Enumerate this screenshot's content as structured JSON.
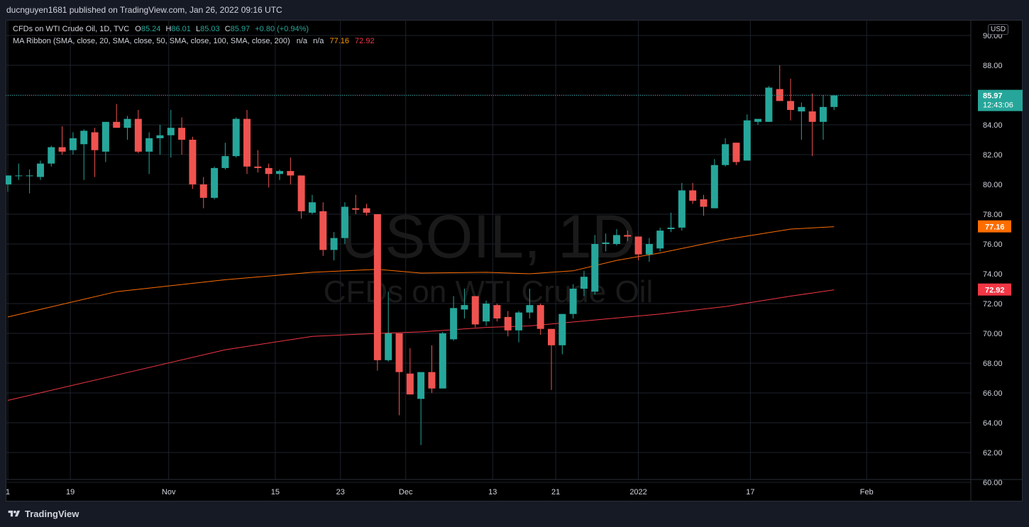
{
  "header": {
    "publisher_text": "ducnguyen1681 published on TradingView.com, Jan 26, 2022 09:16 UTC"
  },
  "legend": {
    "symbol": "CFDs on WTI Crude Oil, 1D, TVC",
    "o_label": "O",
    "o_value": "85.24",
    "h_label": "H",
    "h_value": "86.01",
    "l_label": "L",
    "l_value": "85.03",
    "c_label": "C",
    "c_value": "85.97",
    "change": "+0.80 (+0.94%)",
    "ma_label": "MA Ribbon (SMA, close, 20, SMA, close, 50, SMA, close, 100, SMA, close, 200)",
    "ma_na1": "n/a",
    "ma_na2": "n/a",
    "ma_val1": "77.16",
    "ma_val2": "72.92"
  },
  "currency": "USD",
  "footer": {
    "brand": "TradingView"
  },
  "chart_data": {
    "type": "candlestick",
    "watermark_symbol": "USOIL, 1D",
    "watermark_name": "CFDs on WTI Crude Oil",
    "ylim": [
      60,
      91
    ],
    "y_ticks": [
      "60.00",
      "62.00",
      "64.00",
      "66.00",
      "68.00",
      "70.00",
      "72.00",
      "74.00",
      "76.00",
      "78.00",
      "80.00",
      "82.00",
      "84.00",
      "86.00",
      "88.00",
      "90.00"
    ],
    "x_ticks": [
      {
        "label": "1",
        "idx": 0
      },
      {
        "label": "19",
        "idx": 5.75
      },
      {
        "label": "Nov",
        "idx": 14.8
      },
      {
        "label": "15",
        "idx": 24.6
      },
      {
        "label": "23",
        "idx": 30.6
      },
      {
        "label": "Dec",
        "idx": 36.6
      },
      {
        "label": "13",
        "idx": 44.6
      },
      {
        "label": "21",
        "idx": 50.4
      },
      {
        "label": "2022",
        "idx": 58.0
      },
      {
        "label": "17",
        "idx": 68.3
      },
      {
        "label": "Feb",
        "idx": 79.0
      }
    ],
    "price_label": {
      "value": "85.97",
      "countdown": "12:43:06",
      "color": "#26a69a"
    },
    "ma_labels": [
      {
        "value": "77.16",
        "color": "#ff6d00"
      },
      {
        "value": "72.92",
        "color": "#f23645"
      }
    ],
    "colors": {
      "up": "#26a69a",
      "down": "#ef5350",
      "ma100": "#ff6d00",
      "ma200": "#f23645"
    },
    "candles": [
      [
        80.0,
        80.6,
        79.5,
        80.6
      ],
      [
        80.6,
        81.4,
        80.3,
        80.6
      ],
      [
        80.6,
        81.0,
        79.4,
        80.6
      ],
      [
        80.5,
        81.6,
        80.3,
        81.4
      ],
      [
        81.4,
        82.6,
        81.2,
        82.5
      ],
      [
        82.5,
        83.9,
        82.0,
        82.2
      ],
      [
        82.3,
        83.5,
        82.0,
        83.1
      ],
      [
        82.7,
        83.7,
        80.3,
        83.6
      ],
      [
        83.5,
        83.8,
        80.5,
        82.3
      ],
      [
        82.2,
        84.0,
        81.5,
        84.2
      ],
      [
        84.2,
        85.4,
        83.9,
        83.8
      ],
      [
        83.8,
        84.6,
        83.0,
        84.4
      ],
      [
        84.4,
        85.0,
        82.1,
        82.2
      ],
      [
        82.2,
        83.5,
        80.7,
        83.1
      ],
      [
        83.1,
        84.0,
        82.0,
        83.3
      ],
      [
        83.3,
        85.0,
        81.8,
        83.8
      ],
      [
        83.8,
        84.5,
        82.0,
        83.0
      ],
      [
        83.0,
        83.2,
        79.7,
        80.0
      ],
      [
        80.0,
        80.5,
        78.4,
        79.1
      ],
      [
        79.1,
        81.2,
        79.0,
        81.1
      ],
      [
        81.1,
        82.8,
        81.0,
        81.9
      ],
      [
        81.9,
        84.5,
        81.8,
        84.4
      ],
      [
        84.4,
        85.0,
        80.7,
        81.2
      ],
      [
        81.2,
        82.3,
        80.8,
        81.1
      ],
      [
        81.1,
        81.4,
        79.8,
        80.7
      ],
      [
        80.7,
        81.0,
        80.3,
        80.9
      ],
      [
        80.9,
        81.8,
        80.0,
        80.6
      ],
      [
        80.6,
        80.6,
        77.7,
        78.2
      ],
      [
        78.1,
        79.3,
        78.0,
        78.8
      ],
      [
        78.2,
        78.8,
        75.2,
        75.6
      ],
      [
        75.6,
        76.8,
        74.9,
        76.4
      ],
      [
        76.4,
        78.8,
        76.0,
        78.5
      ],
      [
        78.4,
        79.3,
        78.0,
        78.3
      ],
      [
        78.4,
        78.7,
        77.9,
        78.1
      ],
      [
        78.0,
        78.0,
        67.5,
        68.2
      ],
      [
        68.2,
        72.8,
        68.1,
        70.0
      ],
      [
        70.0,
        70.0,
        64.5,
        67.4
      ],
      [
        67.3,
        69.0,
        65.9,
        65.9
      ],
      [
        65.6,
        67.2,
        62.5,
        67.4
      ],
      [
        67.4,
        69.2,
        66.0,
        66.3
      ],
      [
        66.3,
        70.1,
        66.3,
        70.0
      ],
      [
        69.6,
        72.5,
        69.5,
        71.7
      ],
      [
        71.6,
        73.0,
        71.0,
        71.9
      ],
      [
        72.5,
        72.5,
        70.4,
        70.6
      ],
      [
        70.8,
        72.2,
        70.5,
        72.0
      ],
      [
        71.9,
        72.0,
        70.8,
        71.0
      ],
      [
        71.1,
        71.5,
        69.8,
        70.2
      ],
      [
        70.2,
        71.5,
        69.4,
        71.4
      ],
      [
        71.4,
        73.0,
        71.0,
        71.9
      ],
      [
        71.9,
        72.0,
        69.9,
        70.3
      ],
      [
        70.3,
        70.3,
        66.2,
        69.2
      ],
      [
        69.2,
        71.3,
        68.6,
        71.3
      ],
      [
        71.3,
        73.3,
        71.0,
        73.0
      ],
      [
        73.0,
        74.2,
        72.5,
        73.8
      ],
      [
        72.8,
        76.6,
        72.6,
        76.0
      ],
      [
        76.0,
        76.7,
        75.5,
        76.1
      ],
      [
        76.0,
        77.0,
        75.9,
        76.6
      ],
      [
        76.6,
        76.9,
        76.2,
        76.5
      ],
      [
        76.5,
        76.5,
        74.9,
        75.3
      ],
      [
        75.3,
        76.4,
        74.8,
        76.0
      ],
      [
        75.7,
        77.1,
        75.5,
        76.9
      ],
      [
        77.0,
        78.1,
        76.8,
        77.1
      ],
      [
        77.1,
        80.1,
        76.9,
        79.6
      ],
      [
        79.6,
        80.1,
        78.7,
        78.9
      ],
      [
        79.0,
        79.3,
        77.9,
        78.5
      ],
      [
        78.4,
        81.7,
        78.4,
        81.3
      ],
      [
        81.3,
        83.1,
        81.2,
        82.7
      ],
      [
        82.8,
        82.8,
        81.3,
        81.5
      ],
      [
        81.6,
        84.7,
        81.6,
        84.3
      ],
      [
        84.2,
        84.3,
        84.0,
        84.4
      ],
      [
        84.2,
        86.6,
        84.2,
        86.5
      ],
      [
        86.4,
        88.0,
        85.8,
        85.6
      ],
      [
        85.6,
        87.1,
        84.3,
        85.0
      ],
      [
        84.9,
        85.5,
        83.0,
        85.2
      ],
      [
        84.9,
        86.1,
        81.9,
        84.2
      ],
      [
        84.2,
        86.0,
        83.0,
        85.2
      ],
      [
        85.2,
        86.0,
        85.0,
        85.97
      ]
    ],
    "ma100": [
      [
        0,
        71.1
      ],
      [
        10,
        72.8
      ],
      [
        20,
        73.6
      ],
      [
        28,
        74.1
      ],
      [
        34,
        74.3
      ],
      [
        38,
        74.05
      ],
      [
        44,
        74.1
      ],
      [
        48,
        74.0
      ],
      [
        52,
        74.2
      ],
      [
        56,
        74.9
      ],
      [
        60,
        75.4
      ],
      [
        66,
        76.3
      ],
      [
        72,
        77.0
      ],
      [
        76,
        77.16
      ]
    ],
    "ma200": [
      [
        0,
        65.5
      ],
      [
        10,
        67.2
      ],
      [
        20,
        68.9
      ],
      [
        28,
        69.8
      ],
      [
        34,
        70.0
      ],
      [
        38,
        70.1
      ],
      [
        44,
        70.4
      ],
      [
        48,
        70.5
      ],
      [
        54,
        70.9
      ],
      [
        60,
        71.3
      ],
      [
        66,
        71.8
      ],
      [
        72,
        72.5
      ],
      [
        76,
        72.92
      ]
    ]
  }
}
